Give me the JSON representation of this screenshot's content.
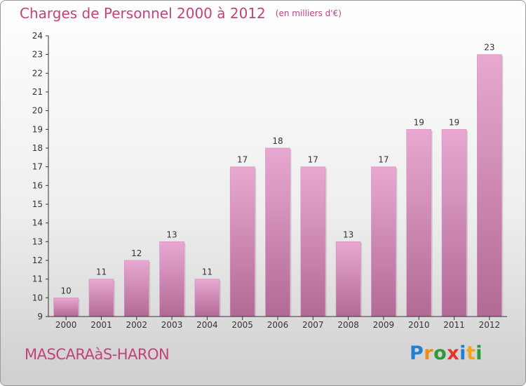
{
  "title": "Charges de Personnel 2000 à 2012",
  "subtitle": "(en milliers d'€)",
  "town": "MASCARAàS-HARON",
  "logo": {
    "letters": [
      {
        "ch": "P",
        "color": "#1f7fd0"
      },
      {
        "ch": "r",
        "color": "#f08a1a"
      },
      {
        "ch": "o",
        "color": "#2a9a3a"
      },
      {
        "ch": "x",
        "color": "#e8332b"
      },
      {
        "ch": "i",
        "color": "#1f7fd0"
      },
      {
        "ch": "t",
        "color": "#f0a51a"
      },
      {
        "ch": "i",
        "color": "#2a9a3a"
      }
    ]
  },
  "colors": {
    "accent": "#c2427c",
    "bar_top": "#e8a8d2",
    "bar_bottom": "#b16a95",
    "axis": "#333333"
  },
  "chart_data": {
    "type": "bar",
    "categories": [
      "2000",
      "2001",
      "2002",
      "2003",
      "2004",
      "2005",
      "2006",
      "2007",
      "2008",
      "2009",
      "2010",
      "2011",
      "2012"
    ],
    "values": [
      10,
      11,
      12,
      13,
      11,
      17,
      18,
      17,
      13,
      17,
      19,
      19,
      23
    ],
    "ylim": [
      9,
      24
    ],
    "yticks": [
      9,
      10,
      11,
      12,
      13,
      14,
      15,
      16,
      17,
      18,
      19,
      20,
      21,
      22,
      23,
      24
    ],
    "grid": false,
    "title": "Charges de Personnel 2000 à 2012",
    "xlabel": "",
    "ylabel": ""
  }
}
